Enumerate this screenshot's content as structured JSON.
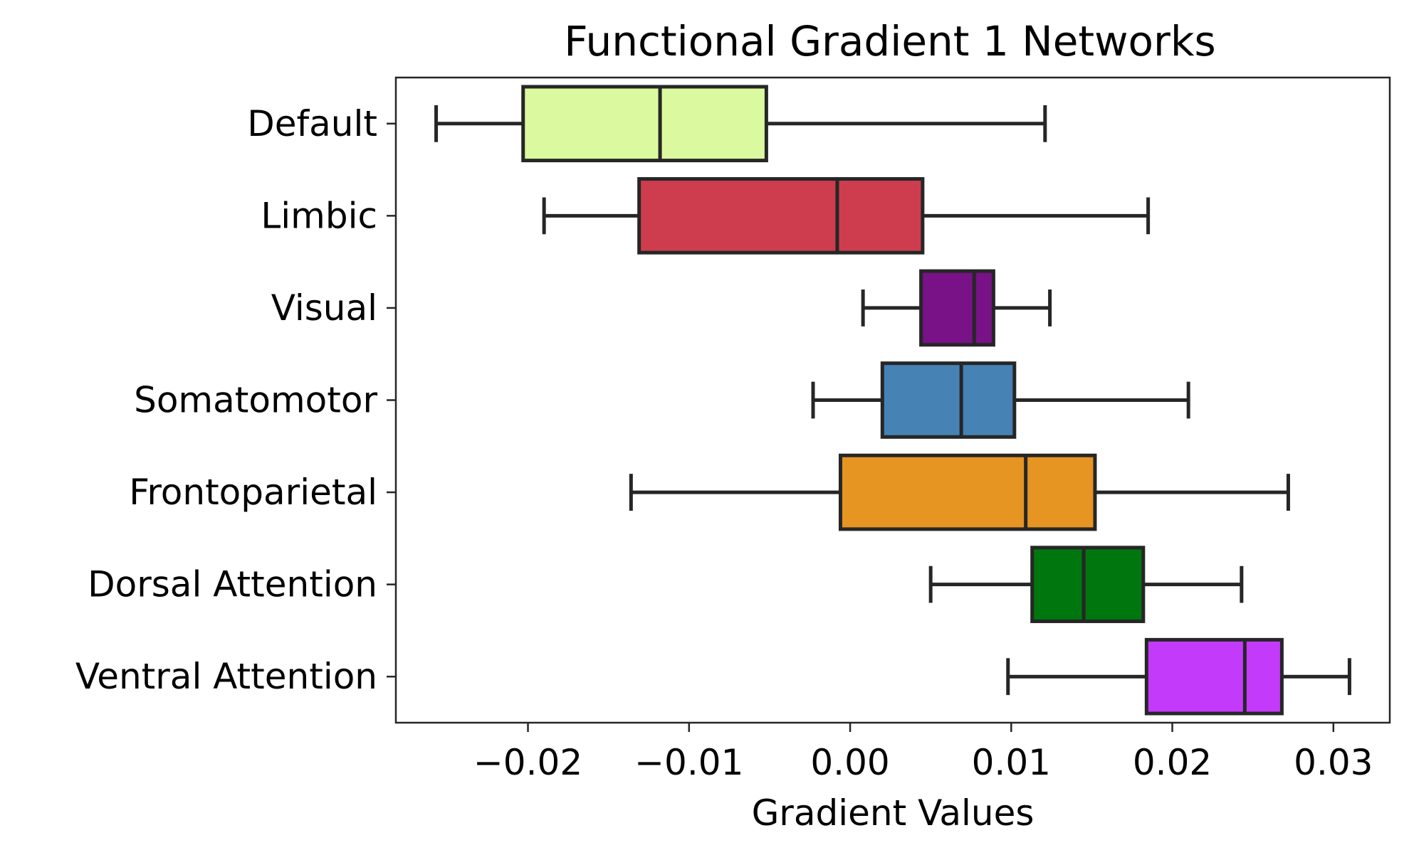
{
  "chart_data": {
    "type": "boxplot",
    "orientation": "horizontal",
    "title": "Functional Gradient 1 Networks",
    "xlabel": "Gradient Values",
    "ylabel": "",
    "xlim": [
      -0.0282,
      0.0335
    ],
    "xticks": [
      -0.02,
      -0.01,
      0.0,
      0.01,
      0.02,
      0.03
    ],
    "xtick_labels": [
      "−0.02",
      "−0.01",
      "0.00",
      "0.01",
      "0.02",
      "0.03"
    ],
    "grid": false,
    "legend": "none",
    "categories": [
      "Default",
      "Limbic",
      "Visual",
      "Somatomotor",
      "Frontoparietal",
      "Dorsal Attention",
      "Ventral Attention"
    ],
    "series": [
      {
        "category": "Default",
        "whislo": -0.0257,
        "q1": -0.0203,
        "med": -0.0118,
        "q3": -0.0052,
        "whishi": 0.0121,
        "color": "#DBF99E"
      },
      {
        "category": "Limbic",
        "whislo": -0.019,
        "q1": -0.0131,
        "med": -0.0008,
        "q3": 0.0045,
        "whishi": 0.0185,
        "color": "#CD3D4D"
      },
      {
        "category": "Visual",
        "whislo": 0.0008,
        "q1": 0.0044,
        "med": 0.0077,
        "q3": 0.0089,
        "whishi": 0.0124,
        "color": "#781286"
      },
      {
        "category": "Somatomotor",
        "whislo": -0.0023,
        "q1": 0.002,
        "med": 0.0069,
        "q3": 0.0102,
        "whishi": 0.021,
        "color": "#4682B4"
      },
      {
        "category": "Frontoparietal",
        "whislo": -0.0136,
        "q1": -0.0006,
        "med": 0.0109,
        "q3": 0.0152,
        "whishi": 0.0272,
        "color": "#E69422"
      },
      {
        "category": "Dorsal Attention",
        "whislo": 0.005,
        "q1": 0.0113,
        "med": 0.0145,
        "q3": 0.0182,
        "whishi": 0.0243,
        "color": "#00760E"
      },
      {
        "category": "Ventral Attention",
        "whislo": 0.0098,
        "q1": 0.0184,
        "med": 0.0245,
        "q3": 0.0268,
        "whishi": 0.031,
        "color": "#C43AFA"
      }
    ],
    "line_color": "#262626"
  }
}
